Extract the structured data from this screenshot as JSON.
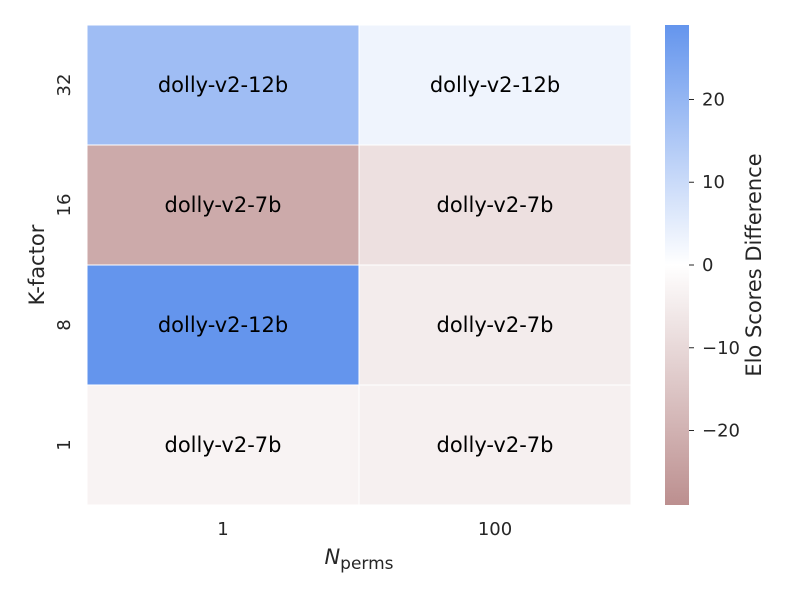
{
  "chart_data": {
    "type": "heatmap",
    "title": "",
    "xlabel": {
      "main": "N",
      "sub": "perms"
    },
    "ylabel": "K-factor",
    "x_categories": [
      "1",
      "100"
    ],
    "y_categories": [
      "32",
      "16",
      "8",
      "1"
    ],
    "values": [
      [
        18,
        3
      ],
      [
        -22,
        -8
      ],
      [
        29,
        -5
      ],
      [
        -3,
        -4
      ]
    ],
    "annotations": [
      [
        "dolly-v2-12b",
        "dolly-v2-12b"
      ],
      [
        "dolly-v2-7b",
        "dolly-v2-7b"
      ],
      [
        "dolly-v2-12b",
        "dolly-v2-7b"
      ],
      [
        "dolly-v2-7b",
        "dolly-v2-7b"
      ]
    ],
    "colorbar": {
      "label": "Elo Scores Difference",
      "range": [
        -29,
        29
      ],
      "ticks": [
        -20,
        -10,
        0,
        10,
        20
      ],
      "tick_labels": [
        "−20",
        "−10",
        "0",
        "10",
        "20"
      ],
      "positive_color": "#6495ED",
      "zero_color": "#FFFFFF",
      "negative_color": "#BC8F8F"
    }
  }
}
